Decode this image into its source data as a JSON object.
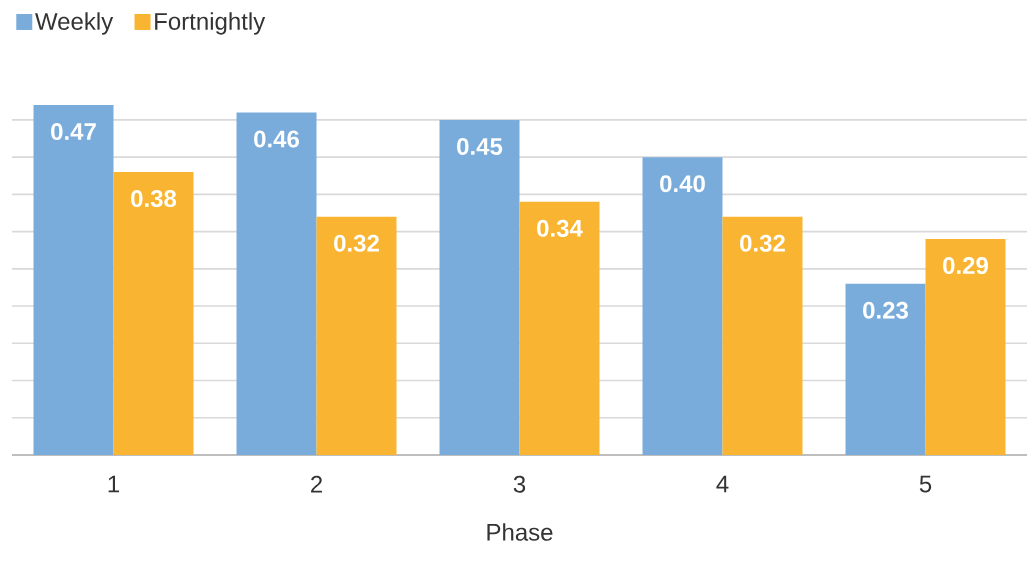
{
  "chart_data": {
    "type": "bar",
    "xlabel": "Phase",
    "categories": [
      "1",
      "2",
      "3",
      "4",
      "5"
    ],
    "series": [
      {
        "name": "Weekly",
        "color": "#7aacdb",
        "values": [
          0.47,
          0.46,
          0.45,
          0.4,
          0.23
        ],
        "value_labels": [
          "0.47",
          "0.46",
          "0.45",
          "0.40",
          "0.23"
        ]
      },
      {
        "name": "Fortnightly",
        "color": "#f9b531",
        "values": [
          0.38,
          0.32,
          0.34,
          0.32,
          0.29
        ],
        "value_labels": [
          "0.38",
          "0.32",
          "0.34",
          "0.32",
          "0.29"
        ]
      }
    ],
    "tick_labels": "x",
    "grid": "y",
    "legend": "top left"
  }
}
